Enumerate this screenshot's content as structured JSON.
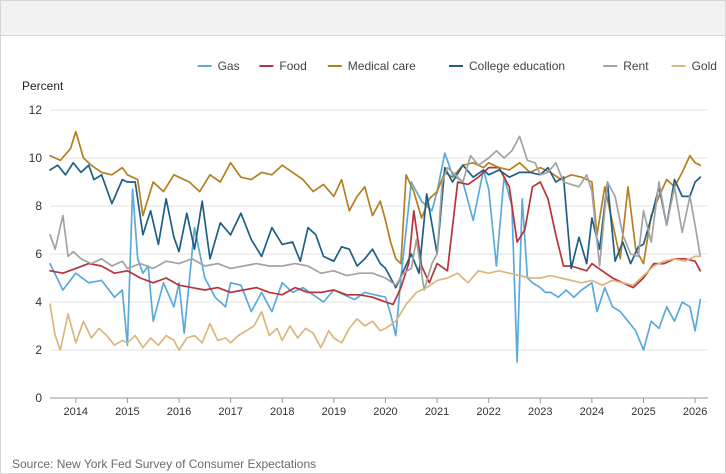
{
  "chart_data": {
    "type": "line",
    "title": "",
    "ylabel": "Percent",
    "xlabel": "",
    "ylim": [
      0,
      12
    ],
    "yticks": [
      0,
      2,
      4,
      6,
      8,
      10,
      12
    ],
    "xlim": [
      2013.5,
      2026.25
    ],
    "xticks": [
      2014,
      2015,
      2016,
      2017,
      2018,
      2019,
      2020,
      2021,
      2022,
      2023,
      2024,
      2025,
      2026
    ],
    "grid": "horizontal",
    "legend_position": "top-right",
    "series": [
      {
        "name": "Gas",
        "color": "#5aaadb",
        "x": [
          2013.5,
          2013.75,
          2014,
          2014.25,
          2014.5,
          2014.75,
          2014.9,
          2015,
          2015.1,
          2015.2,
          2015.3,
          2015.4,
          2015.5,
          2015.7,
          2015.9,
          2016,
          2016.1,
          2016.3,
          2016.5,
          2016.7,
          2016.9,
          2017,
          2017.2,
          2017.4,
          2017.6,
          2017.8,
          2018,
          2018.2,
          2018.4,
          2018.6,
          2018.8,
          2019,
          2019.2,
          2019.4,
          2019.6,
          2019.8,
          2020,
          2020.1,
          2020.2,
          2020.3,
          2020.5,
          2020.7,
          2020.9,
          2021,
          2021.15,
          2021.3,
          2021.5,
          2021.7,
          2021.9,
          2022,
          2022.15,
          2022.3,
          2022.45,
          2022.55,
          2022.65,
          2022.75,
          2022.85,
          2023,
          2023.1,
          2023.2,
          2023.35,
          2023.5,
          2023.65,
          2023.8,
          2024,
          2024.1,
          2024.25,
          2024.4,
          2024.55,
          2024.7,
          2024.85,
          2025,
          2025.15,
          2025.3,
          2025.45,
          2025.6,
          2025.75,
          2025.9,
          2026,
          2026.1
        ],
        "y": [
          5.6,
          4.5,
          5.2,
          4.8,
          4.9,
          4.2,
          4.5,
          2.2,
          8.7,
          5.8,
          5.2,
          5.5,
          3.2,
          4.8,
          3.8,
          4.8,
          2.7,
          7.1,
          5.0,
          4.2,
          3.8,
          4.8,
          4.7,
          3.6,
          4.4,
          3.6,
          4.8,
          4.4,
          4.6,
          4.3,
          4.0,
          4.5,
          4.3,
          4.1,
          4.4,
          4.3,
          4.2,
          3.5,
          2.6,
          5.0,
          9.0,
          8.2,
          7.8,
          8.6,
          10.2,
          9.3,
          9.0,
          7.4,
          9.5,
          8.7,
          5.5,
          9.2,
          8.0,
          1.5,
          8.3,
          5.0,
          4.8,
          4.6,
          4.4,
          4.4,
          4.2,
          4.5,
          4.2,
          4.5,
          4.8,
          3.6,
          4.6,
          3.8,
          3.6,
          3.2,
          2.8,
          2.0,
          3.2,
          2.9,
          3.8,
          3.2,
          4.0,
          3.8,
          2.8,
          4.1
        ]
      },
      {
        "name": "Food",
        "color": "#b6343a",
        "x": [
          2013.5,
          2013.75,
          2014,
          2014.25,
          2014.5,
          2014.75,
          2015,
          2015.25,
          2015.5,
          2015.75,
          2016,
          2016.25,
          2016.5,
          2016.75,
          2017,
          2017.25,
          2017.5,
          2017.75,
          2018,
          2018.25,
          2018.5,
          2018.75,
          2019,
          2019.25,
          2019.5,
          2019.75,
          2020,
          2020.15,
          2020.3,
          2020.45,
          2020.55,
          2020.7,
          2020.85,
          2021,
          2021.2,
          2021.4,
          2021.6,
          2021.8,
          2022,
          2022.2,
          2022.4,
          2022.55,
          2022.7,
          2022.85,
          2023,
          2023.15,
          2023.3,
          2023.45,
          2023.6,
          2023.75,
          2023.9,
          2024,
          2024.2,
          2024.4,
          2024.6,
          2024.8,
          2025,
          2025.2,
          2025.4,
          2025.6,
          2025.8,
          2026,
          2026.1
        ],
        "y": [
          5.3,
          5.2,
          5.4,
          5.6,
          5.5,
          5.2,
          5.3,
          5.0,
          4.8,
          5.0,
          4.7,
          4.6,
          4.5,
          4.6,
          4.4,
          4.5,
          4.6,
          4.4,
          4.3,
          4.6,
          4.4,
          4.4,
          4.5,
          4.3,
          4.3,
          4.2,
          4.0,
          3.9,
          4.6,
          5.6,
          7.8,
          5.5,
          4.8,
          5.6,
          5.3,
          9.0,
          8.9,
          9.2,
          9.6,
          9.6,
          8.8,
          6.5,
          7.0,
          8.8,
          9.0,
          8.3,
          6.8,
          5.5,
          5.5,
          5.4,
          5.3,
          5.6,
          5.3,
          5.0,
          4.8,
          4.6,
          5.0,
          5.6,
          5.6,
          5.8,
          5.8,
          5.7,
          5.3
        ]
      },
      {
        "name": "Medical care",
        "color": "#b57f20",
        "x": [
          2013.5,
          2013.7,
          2013.9,
          2014,
          2014.15,
          2014.3,
          2014.5,
          2014.7,
          2014.9,
          2015,
          2015.2,
          2015.3,
          2015.5,
          2015.7,
          2015.9,
          2016,
          2016.2,
          2016.4,
          2016.6,
          2016.8,
          2017,
          2017.2,
          2017.4,
          2017.6,
          2017.8,
          2018,
          2018.2,
          2018.4,
          2018.6,
          2018.8,
          2019,
          2019.15,
          2019.3,
          2019.45,
          2019.6,
          2019.75,
          2019.9,
          2020,
          2020.1,
          2020.2,
          2020.3,
          2020.4,
          2020.55,
          2020.7,
          2020.85,
          2021,
          2021.15,
          2021.3,
          2021.5,
          2021.7,
          2021.9,
          2022,
          2022.2,
          2022.4,
          2022.6,
          2022.8,
          2023,
          2023.2,
          2023.4,
          2023.6,
          2023.8,
          2024,
          2024.1,
          2024.25,
          2024.4,
          2024.55,
          2024.7,
          2024.85,
          2025,
          2025.15,
          2025.3,
          2025.45,
          2025.6,
          2025.75,
          2025.9,
          2026,
          2026.1
        ],
        "y": [
          10.1,
          9.9,
          10.4,
          11.1,
          10.0,
          9.7,
          9.4,
          9.3,
          9.6,
          9.3,
          9.1,
          7.6,
          9.0,
          8.6,
          9.3,
          9.2,
          9.0,
          8.6,
          9.3,
          9.0,
          9.8,
          9.2,
          9.1,
          9.4,
          9.3,
          9.7,
          9.4,
          9.1,
          8.6,
          8.9,
          8.4,
          9.1,
          7.8,
          8.4,
          8.8,
          7.6,
          8.2,
          7.4,
          6.5,
          5.8,
          5.6,
          9.3,
          8.6,
          7.5,
          8.3,
          8.6,
          9.4,
          9.2,
          9.7,
          9.8,
          9.6,
          9.8,
          9.6,
          9.5,
          9.8,
          9.4,
          9.6,
          9.4,
          9.1,
          9.3,
          9.2,
          9.0,
          6.8,
          8.8,
          7.3,
          5.8,
          8.8,
          6.2,
          5.6,
          7.6,
          8.4,
          9.1,
          8.8,
          9.4,
          10.1,
          9.8,
          9.7
        ]
      },
      {
        "name": "College education",
        "color": "#1f5f85",
        "x": [
          2013.5,
          2013.65,
          2013.8,
          2013.95,
          2014.1,
          2014.25,
          2014.35,
          2014.5,
          2014.7,
          2014.9,
          2015,
          2015.15,
          2015.3,
          2015.45,
          2015.6,
          2015.75,
          2015.9,
          2016,
          2016.15,
          2016.3,
          2016.45,
          2016.6,
          2016.8,
          2017,
          2017.2,
          2017.4,
          2017.6,
          2017.8,
          2018,
          2018.2,
          2018.35,
          2018.5,
          2018.65,
          2018.8,
          2019,
          2019.15,
          2019.3,
          2019.45,
          2019.6,
          2019.75,
          2019.9,
          2020,
          2020.2,
          2020.35,
          2020.5,
          2020.65,
          2020.8,
          2021,
          2021.15,
          2021.3,
          2021.5,
          2021.7,
          2021.9,
          2022,
          2022.2,
          2022.4,
          2022.6,
          2022.8,
          2023,
          2023.15,
          2023.3,
          2023.45,
          2023.6,
          2023.75,
          2023.9,
          2024,
          2024.15,
          2024.3,
          2024.45,
          2024.6,
          2024.75,
          2024.9,
          2025,
          2025.15,
          2025.3,
          2025.45,
          2025.6,
          2025.75,
          2025.9,
          2026,
          2026.1
        ],
        "y": [
          9.5,
          9.7,
          9.3,
          9.8,
          9.4,
          9.7,
          9.1,
          9.3,
          8.1,
          9.1,
          9.0,
          9.0,
          6.8,
          7.8,
          6.4,
          8.3,
          6.7,
          6.1,
          7.7,
          6.2,
          8.2,
          5.8,
          7.3,
          6.8,
          7.7,
          6.6,
          5.9,
          7.1,
          6.4,
          6.5,
          5.7,
          7.1,
          6.8,
          5.9,
          5.7,
          6.3,
          6.2,
          5.5,
          5.8,
          6.2,
          5.6,
          5.4,
          4.6,
          5.3,
          6.0,
          5.2,
          8.5,
          6.0,
          9.6,
          9.0,
          9.7,
          9.2,
          9.5,
          9.3,
          9.5,
          9.2,
          9.4,
          9.4,
          9.3,
          9.6,
          9.0,
          9.2,
          5.4,
          6.7,
          5.6,
          7.5,
          6.2,
          9.0,
          5.7,
          6.5,
          5.6,
          6.3,
          6.4,
          7.5,
          8.8,
          7.2,
          9.1,
          8.4,
          8.4,
          9.0,
          9.2
        ]
      },
      {
        "name": "Rent",
        "color": "#a3a3a3",
        "x": [
          2013.5,
          2013.6,
          2013.75,
          2013.85,
          2013.95,
          2014.1,
          2014.3,
          2014.5,
          2014.7,
          2014.9,
          2015,
          2015.25,
          2015.5,
          2015.75,
          2016,
          2016.25,
          2016.5,
          2016.75,
          2017,
          2017.25,
          2017.5,
          2017.75,
          2018,
          2018.25,
          2018.5,
          2018.75,
          2019,
          2019.25,
          2019.5,
          2019.75,
          2020,
          2020.2,
          2020.35,
          2020.5,
          2020.6,
          2020.75,
          2020.9,
          2021,
          2021.1,
          2021.2,
          2021.35,
          2021.5,
          2021.65,
          2021.8,
          2022,
          2022.15,
          2022.3,
          2022.45,
          2022.6,
          2022.75,
          2022.9,
          2023,
          2023.15,
          2023.3,
          2023.45,
          2023.6,
          2023.75,
          2023.9,
          2024,
          2024.15,
          2024.3,
          2024.45,
          2024.6,
          2024.75,
          2024.9,
          2025,
          2025.15,
          2025.3,
          2025.45,
          2025.6,
          2025.75,
          2025.9,
          2026,
          2026.1
        ],
        "y": [
          6.8,
          6.2,
          7.6,
          5.9,
          6.1,
          5.8,
          5.6,
          5.8,
          5.5,
          5.7,
          5.4,
          5.6,
          5.4,
          5.7,
          5.6,
          5.8,
          5.5,
          5.6,
          5.4,
          5.5,
          5.6,
          5.5,
          5.5,
          5.6,
          5.5,
          5.2,
          5.3,
          5.1,
          5.2,
          5.2,
          5.0,
          4.7,
          5.2,
          5.4,
          6.6,
          4.5,
          5.6,
          6.0,
          9.0,
          9.6,
          9.3,
          9.0,
          10.1,
          9.7,
          10.0,
          10.3,
          10.0,
          10.3,
          10.9,
          9.9,
          9.8,
          9.3,
          9.4,
          9.8,
          9.0,
          8.9,
          8.8,
          9.3,
          8.6,
          5.5,
          9.0,
          8.4,
          6.8,
          6.0,
          5.9,
          7.8,
          6.5,
          9.0,
          7.2,
          8.8,
          6.9,
          8.4,
          7.2,
          5.9
        ]
      },
      {
        "name": "Gold",
        "color": "#d9b77d",
        "x": [
          2013.5,
          2013.6,
          2013.7,
          2013.85,
          2014,
          2014.15,
          2014.3,
          2014.45,
          2014.6,
          2014.75,
          2014.9,
          2015,
          2015.15,
          2015.3,
          2015.45,
          2015.6,
          2015.75,
          2015.9,
          2016,
          2016.15,
          2016.3,
          2016.45,
          2016.6,
          2016.75,
          2016.9,
          2017,
          2017.15,
          2017.3,
          2017.45,
          2017.6,
          2017.75,
          2017.9,
          2018,
          2018.15,
          2018.3,
          2018.45,
          2018.6,
          2018.75,
          2018.9,
          2019,
          2019.15,
          2019.3,
          2019.45,
          2019.6,
          2019.75,
          2019.9,
          2020,
          2020.2,
          2020.4,
          2020.6,
          2020.8,
          2021,
          2021.2,
          2021.4,
          2021.6,
          2021.8,
          2022,
          2022.2,
          2022.4,
          2022.6,
          2022.8,
          2023,
          2023.2,
          2023.4,
          2023.6,
          2023.8,
          2024,
          2024.2,
          2024.4,
          2024.6,
          2024.8,
          2025,
          2025.2,
          2025.4,
          2025.6,
          2025.8,
          2026,
          2026.1
        ],
        "y": [
          3.9,
          2.6,
          2.0,
          3.5,
          2.3,
          3.2,
          2.5,
          2.9,
          2.6,
          2.2,
          2.4,
          2.3,
          2.6,
          2.1,
          2.5,
          2.2,
          2.6,
          2.4,
          2.0,
          2.5,
          2.6,
          2.3,
          3.1,
          2.4,
          2.5,
          2.3,
          2.6,
          2.8,
          3.0,
          3.6,
          2.6,
          2.9,
          2.4,
          3.0,
          2.5,
          2.9,
          2.7,
          2.1,
          2.8,
          2.5,
          2.3,
          2.9,
          3.3,
          3.0,
          3.2,
          2.8,
          2.9,
          3.2,
          3.9,
          4.4,
          4.6,
          4.9,
          5.0,
          5.2,
          4.8,
          5.3,
          5.2,
          5.3,
          5.2,
          5.1,
          5.0,
          5.0,
          5.1,
          5.0,
          4.9,
          4.8,
          4.9,
          4.7,
          4.9,
          4.8,
          4.7,
          5.1,
          5.5,
          5.7,
          5.8,
          5.7,
          5.9,
          5.9
        ]
      }
    ]
  },
  "source": "Source: New York Fed Survey of Consumer Expectations"
}
